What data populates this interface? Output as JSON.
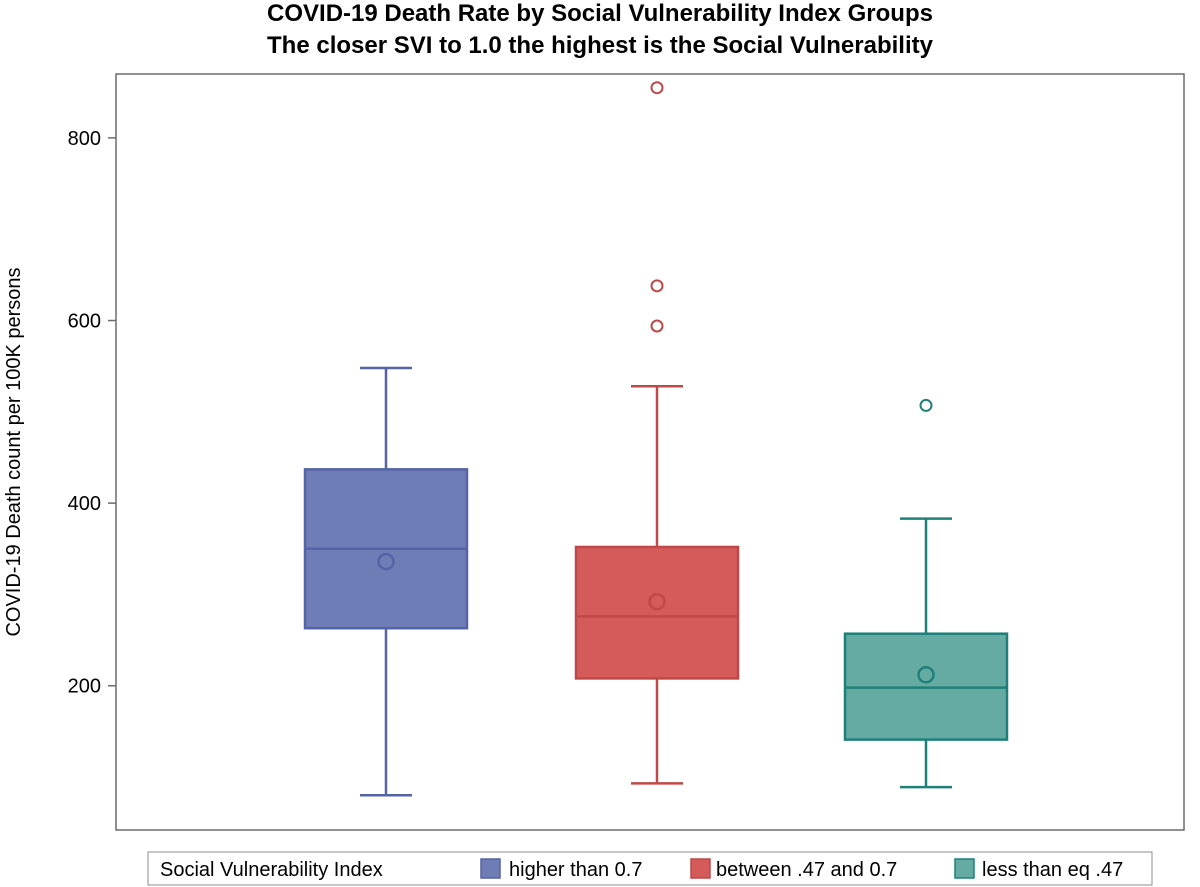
{
  "chart_data": {
    "type": "box",
    "title": "COVID-19 Death Rate by Social Vulnerability Index Groups",
    "subtitle": "The closer SVI to 1.0 the highest is the Social Vulnerability",
    "ylabel": "COVID-19 Death count per 100K persons",
    "xlabel": "",
    "ylim": [
      42,
      870
    ],
    "yticks": [
      200,
      400,
      600,
      800
    ],
    "legend": {
      "title": "Social Vulnerability Index",
      "position": "bottom"
    },
    "series": [
      {
        "name": "higher than 0.7",
        "fill": "#6f7db7",
        "stroke": "#5464a6",
        "whisker_low": 80,
        "q1": 263,
        "median": 350,
        "q3": 437,
        "whisker_high": 548,
        "mean": 336,
        "outliers": []
      },
      {
        "name": "between .47 and 0.7",
        "fill": "#d55a5a",
        "stroke": "#c04848",
        "whisker_low": 93,
        "q1": 208,
        "median": 276,
        "q3": 352,
        "whisker_high": 528,
        "mean": 292,
        "outliers": [
          594,
          638,
          855
        ]
      },
      {
        "name": "less than eq .47",
        "fill": "#65aba3",
        "stroke": "#1f8079",
        "whisker_low": 89,
        "q1": 141,
        "median": 198,
        "q3": 257,
        "whisker_high": 383,
        "mean": 212,
        "outliers": [
          507
        ]
      }
    ]
  }
}
